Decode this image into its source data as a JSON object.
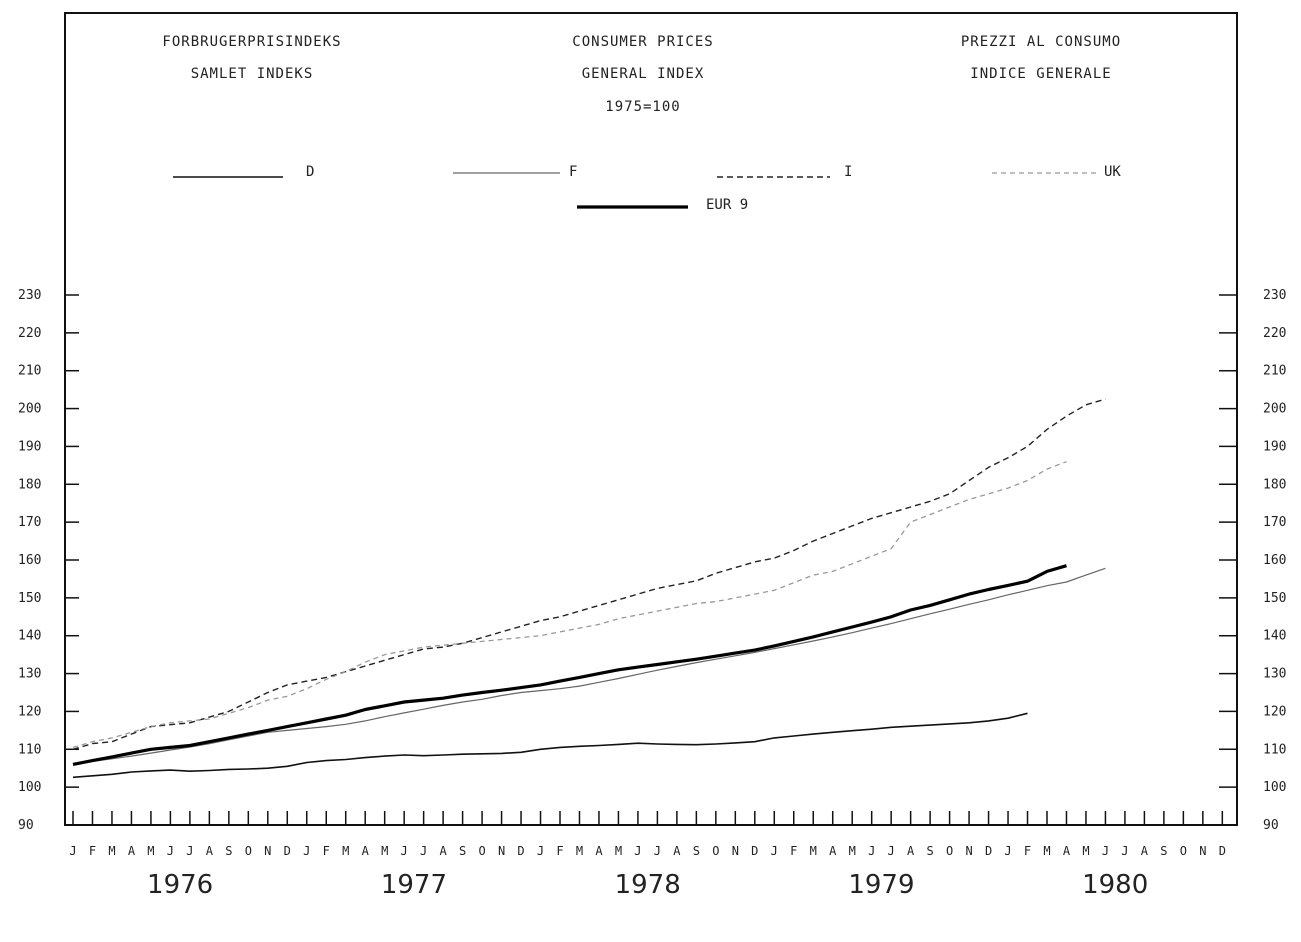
{
  "header": {
    "left_title": "FORBRUGERPRISINDEKS",
    "left_sub": "SAMLET INDEKS",
    "center_title": "CONSUMER PRICES",
    "center_sub": "GENERAL INDEX",
    "center_base": "1975=100",
    "right_title": "PREZZI AL CONSUMO",
    "right_sub": "INDICE GENERALE"
  },
  "colors": {
    "axis": "#111111",
    "D": "#111111",
    "F": "#666666",
    "I": "#222222",
    "UK": "#999999",
    "EUR9": "#000000"
  },
  "chart_data": {
    "type": "line",
    "ylim": [
      90,
      230
    ],
    "yticks": [
      90,
      100,
      110,
      120,
      130,
      140,
      150,
      160,
      170,
      180,
      190,
      200,
      210,
      220,
      230
    ],
    "month_labels": [
      "J",
      "F",
      "M",
      "A",
      "M",
      "J",
      "J",
      "A",
      "S",
      "O",
      "N",
      "D"
    ],
    "years": [
      "1976",
      "1977",
      "1978",
      "1979",
      "1980"
    ],
    "x_start": "1976-01",
    "legend_position": "top",
    "series": [
      {
        "name": "D",
        "style": "solid-thin",
        "values": [
          102.6,
          103.0,
          103.4,
          104.0,
          104.3,
          104.5,
          104.2,
          104.4,
          104.7,
          104.8,
          105.0,
          105.5,
          106.5,
          107.0,
          107.3,
          107.8,
          108.2,
          108.5,
          108.3,
          108.5,
          108.7,
          108.8,
          108.9,
          109.2,
          110.0,
          110.5,
          110.8,
          111.0,
          111.3,
          111.6,
          111.4,
          111.3,
          111.2,
          111.4,
          111.7,
          112.0,
          113.0,
          113.5,
          114.0,
          114.5,
          114.9,
          115.3,
          115.8,
          116.1,
          116.4,
          116.7,
          117.0,
          117.5,
          118.2,
          119.5
        ]
      },
      {
        "name": "F",
        "style": "solid-light",
        "values": [
          106.0,
          106.8,
          107.5,
          108.2,
          109.0,
          109.8,
          110.6,
          111.5,
          112.5,
          113.5,
          114.5,
          115.0,
          115.5,
          116.0,
          116.6,
          117.5,
          118.6,
          119.6,
          120.6,
          121.6,
          122.5,
          123.2,
          124.2,
          125.0,
          125.5,
          126.0,
          126.7,
          127.7,
          128.7,
          129.8,
          130.9,
          131.9,
          132.9,
          133.8,
          134.7,
          135.6,
          136.6,
          137.6,
          138.6,
          139.7,
          140.8,
          142.0,
          143.2,
          144.5,
          145.8,
          147.0,
          148.3,
          149.5,
          150.8,
          152.0,
          153.2,
          154.2,
          156.0,
          157.8
        ]
      },
      {
        "name": "I",
        "style": "dashed",
        "values": [
          110.0,
          111.5,
          112.0,
          114.0,
          116.0,
          116.5,
          117.0,
          118.5,
          120.0,
          122.5,
          125.0,
          127.0,
          128.0,
          129.0,
          130.5,
          132.0,
          133.5,
          135.0,
          136.5,
          137.0,
          138.0,
          139.5,
          141.0,
          142.5,
          144.0,
          145.0,
          146.5,
          148.0,
          149.5,
          151.0,
          152.5,
          153.5,
          154.5,
          156.5,
          158.0,
          159.5,
          160.5,
          162.5,
          165.0,
          167.0,
          169.0,
          171.0,
          172.5,
          174.0,
          175.5,
          177.5,
          181.0,
          184.5,
          187.0,
          190.0,
          194.5,
          198.0,
          201.0,
          202.5
        ]
      },
      {
        "name": "UK",
        "style": "dashed-light",
        "values": [
          110.5,
          112.0,
          113.0,
          114.5,
          116.0,
          117.0,
          117.5,
          118.0,
          119.5,
          121.0,
          123.0,
          124.0,
          126.0,
          128.5,
          130.5,
          133.0,
          135.0,
          136.0,
          137.0,
          137.5,
          138.0,
          138.5,
          139.0,
          139.5,
          140.0,
          141.0,
          142.0,
          143.0,
          144.5,
          145.5,
          146.5,
          147.5,
          148.5,
          149.0,
          150.0,
          151.0,
          152.0,
          154.0,
          156.0,
          157.0,
          159.0,
          161.0,
          163.0,
          170.0,
          172.0,
          174.0,
          176.0,
          177.5,
          179.0,
          181.0,
          184.0,
          186.0
        ]
      },
      {
        "name": "EUR 9",
        "style": "solid-bold",
        "values": [
          106.0,
          107.0,
          108.0,
          109.0,
          110.0,
          110.5,
          111.0,
          112.0,
          113.0,
          114.0,
          115.0,
          116.0,
          117.0,
          118.0,
          119.0,
          120.5,
          121.5,
          122.5,
          123.0,
          123.5,
          124.3,
          125.0,
          125.6,
          126.3,
          127.0,
          128.0,
          129.0,
          130.0,
          131.0,
          131.7,
          132.4,
          133.1,
          133.8,
          134.6,
          135.4,
          136.2,
          137.3,
          138.5,
          139.7,
          141.0,
          142.3,
          143.6,
          145.0,
          146.8,
          148.0,
          149.5,
          151.0,
          152.2,
          153.3,
          154.4,
          157.0,
          158.5
        ]
      }
    ]
  }
}
